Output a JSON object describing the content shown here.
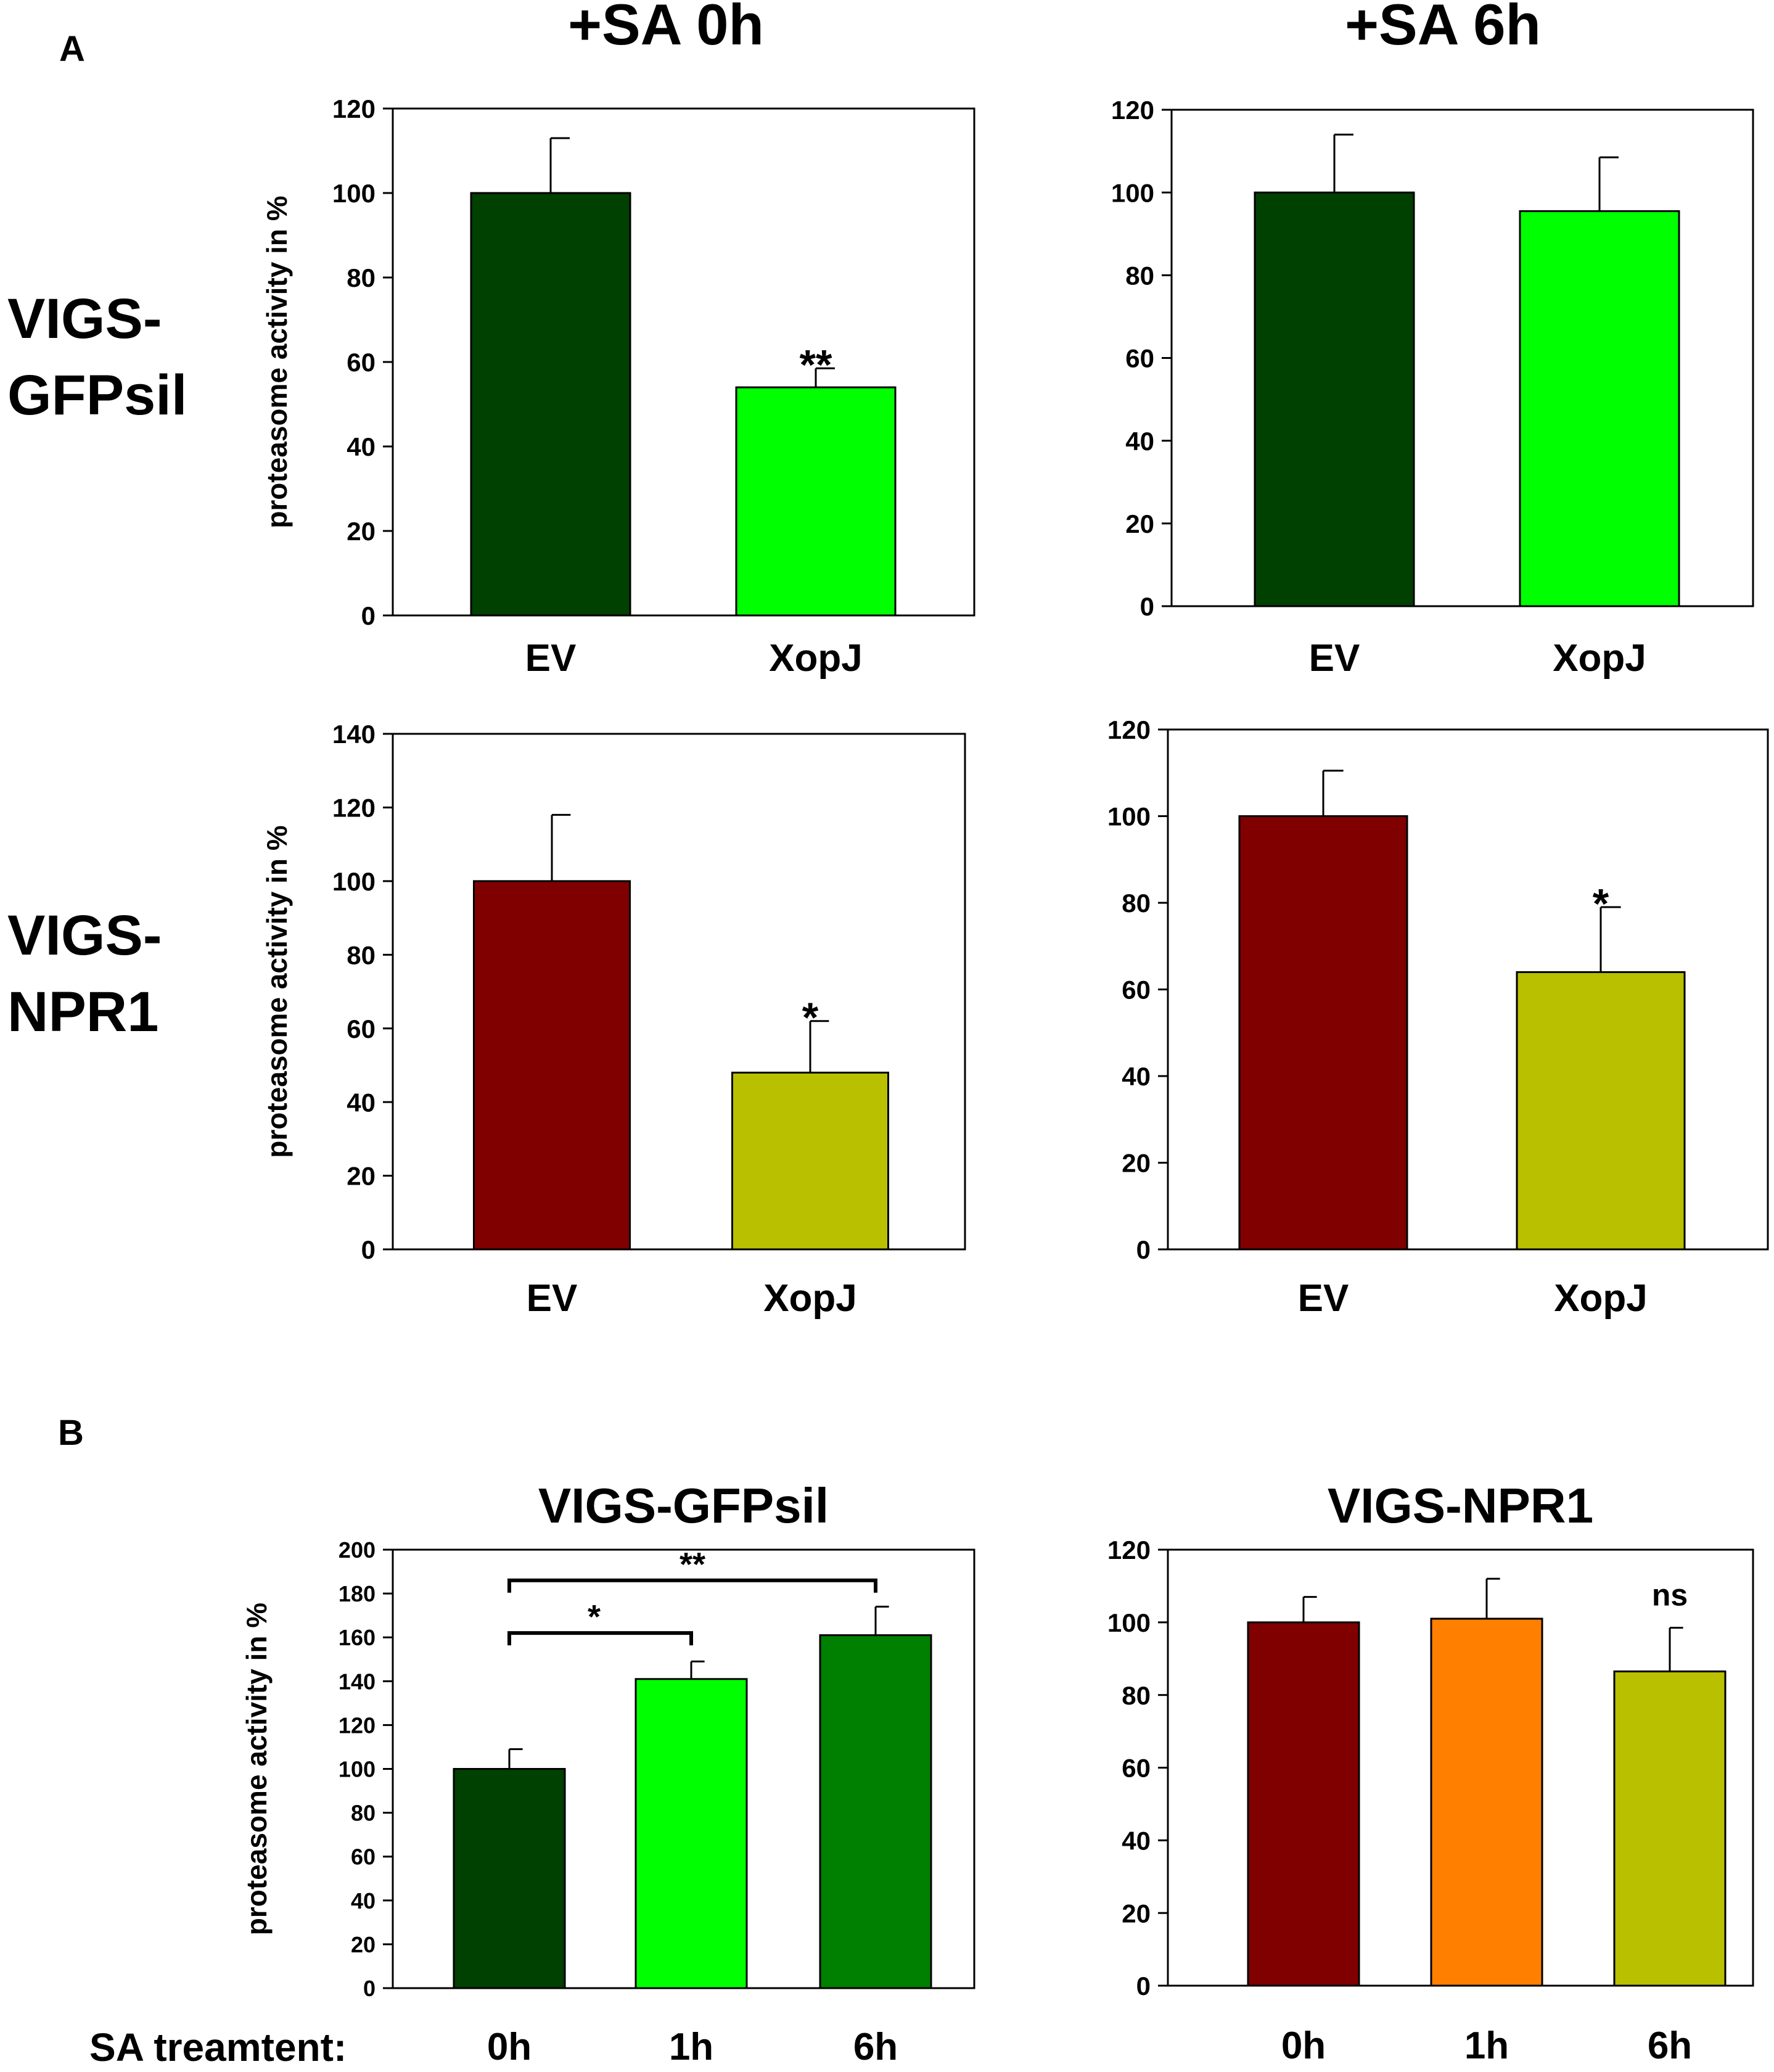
{
  "panel_labels": {
    "a": "A",
    "b": "B"
  },
  "column_titles": {
    "sa0": "+SA 0h",
    "sa6": "+SA 6h"
  },
  "row_labels": {
    "gfp": {
      "line1": "VIGS-",
      "line2": "GFPsil"
    },
    "npr1": {
      "line1": "VIGS-",
      "line2": "NPR1"
    }
  },
  "b_footer": {
    "label": "SA treamtent:"
  },
  "chart_data": [
    {
      "id": "a-gfp-0h",
      "type": "bar",
      "title": "",
      "ylabel": "proteasome activity in %",
      "ylim": [
        0,
        120
      ],
      "yticks": [
        0,
        20,
        40,
        60,
        80,
        100,
        120
      ],
      "categories": [
        "EV",
        "XopJ"
      ],
      "values": [
        100,
        54
      ],
      "errors": [
        13,
        4.5
      ],
      "colors": [
        "#004000",
        "#00ff00"
      ],
      "annotations": [
        "",
        "**"
      ]
    },
    {
      "id": "a-gfp-6h",
      "type": "bar",
      "title": "",
      "ylabel": "",
      "ylim": [
        0,
        120
      ],
      "yticks": [
        0,
        20,
        40,
        60,
        80,
        100,
        120
      ],
      "categories": [
        "EV",
        "XopJ"
      ],
      "values": [
        100,
        95.5
      ],
      "errors": [
        14,
        13
      ],
      "colors": [
        "#004000",
        "#00ff00"
      ],
      "annotations": [
        "",
        ""
      ]
    },
    {
      "id": "a-npr1-0h",
      "type": "bar",
      "title": "",
      "ylabel": "proteasome activity in %",
      "ylim": [
        0,
        140
      ],
      "yticks": [
        0,
        20,
        40,
        60,
        80,
        100,
        120,
        140
      ],
      "categories": [
        "EV",
        "XopJ"
      ],
      "values": [
        100,
        48
      ],
      "errors": [
        18,
        14
      ],
      "colors": [
        "#800000",
        "#b8c000"
      ],
      "annotations": [
        "",
        "*"
      ]
    },
    {
      "id": "a-npr1-6h",
      "type": "bar",
      "title": "",
      "ylabel": "",
      "ylim": [
        0,
        120
      ],
      "yticks": [
        0,
        20,
        40,
        60,
        80,
        100,
        120
      ],
      "categories": [
        "EV",
        "XopJ"
      ],
      "values": [
        100,
        64
      ],
      "errors": [
        10.5,
        15
      ],
      "colors": [
        "#800000",
        "#b8c000"
      ],
      "annotations": [
        "",
        "*"
      ]
    },
    {
      "id": "b-gfp",
      "type": "bar",
      "title": "VIGS-GFPsil",
      "ylabel": "proteasome activity in %",
      "ylim": [
        0,
        200
      ],
      "yticks": [
        0,
        20,
        40,
        60,
        80,
        100,
        120,
        140,
        160,
        180,
        200
      ],
      "categories": [
        "0h",
        "1h",
        "6h"
      ],
      "values": [
        100,
        141,
        161
      ],
      "errors": [
        9,
        8,
        13
      ],
      "colors": [
        "#004000",
        "#00ff00",
        "#008000"
      ],
      "annotations": [
        "",
        "",
        ""
      ],
      "brackets": [
        {
          "from": 0,
          "to": 1,
          "y": 162,
          "label": "*"
        },
        {
          "from": 0,
          "to": 2,
          "y": 186,
          "label": "**"
        }
      ]
    },
    {
      "id": "b-npr1",
      "type": "bar",
      "title": "VIGS-NPR1",
      "ylabel": "",
      "ylim": [
        0,
        120
      ],
      "yticks": [
        0,
        20,
        40,
        60,
        80,
        100,
        120
      ],
      "categories": [
        "0h",
        "1h",
        "6h"
      ],
      "values": [
        100,
        101,
        86.5
      ],
      "errors": [
        7,
        11,
        12
      ],
      "colors": [
        "#800000",
        "#ff8000",
        "#b8c000"
      ],
      "annotations": [
        "",
        "",
        "ns"
      ]
    }
  ]
}
